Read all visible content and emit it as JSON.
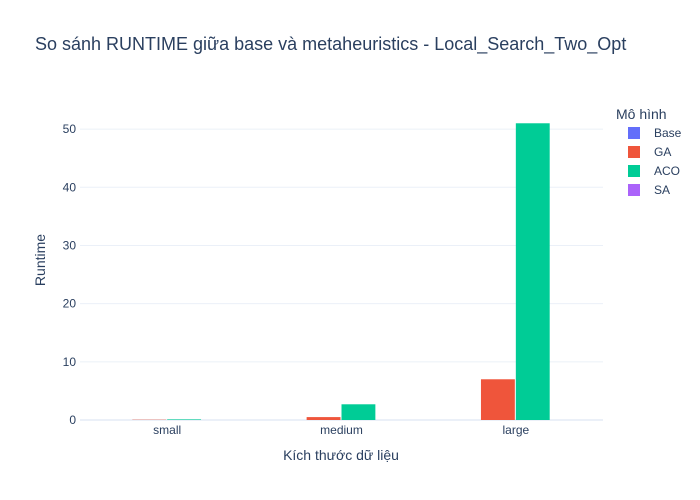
{
  "chart_data": {
    "type": "bar",
    "title": "So sánh RUNTIME giữa base và metaheuristics - Local_Search_Two_Opt",
    "xlabel": "Kích thước dữ liệu",
    "ylabel": "Runtime",
    "categories": [
      "small",
      "medium",
      "large"
    ],
    "series": [
      {
        "name": "Base",
        "color": "#636efa",
        "values": [
          0.0,
          0.0,
          0.0
        ]
      },
      {
        "name": "GA",
        "color": "#ef553b",
        "values": [
          0.05,
          0.5,
          7.0
        ]
      },
      {
        "name": "ACO",
        "color": "#00cc96",
        "values": [
          0.1,
          2.7,
          51.0
        ]
      },
      {
        "name": "SA",
        "color": "#ab63fa",
        "values": [
          0.0,
          0.0,
          0.0
        ]
      }
    ],
    "ylim": [
      0,
      55
    ],
    "yticks": [
      0,
      10,
      20,
      30,
      40,
      50
    ],
    "grid": true,
    "legend": {
      "title": "Mô hình",
      "placement": "top-right"
    }
  }
}
